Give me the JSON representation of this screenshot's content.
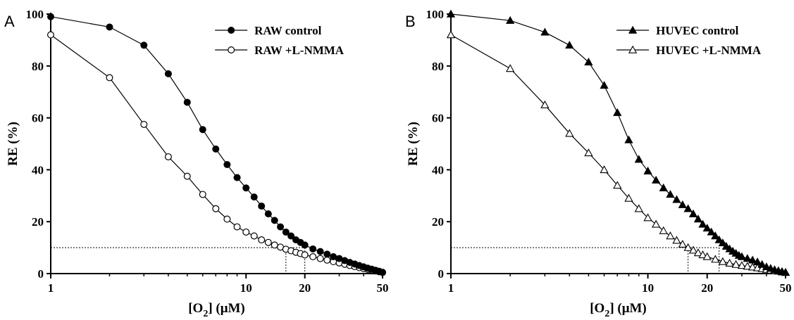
{
  "chart_data": [
    {
      "type": "line",
      "panel_label": "A",
      "xlabel": "[O2] (μM)",
      "ylabel": "RE (%)",
      "x_scale": "log",
      "xlim": [
        1,
        50
      ],
      "ylim": [
        0,
        100
      ],
      "x_ticks": [
        1,
        10,
        20,
        50
      ],
      "x_tick_labels": [
        "1",
        "10",
        "20",
        "50"
      ],
      "y_ticks": [
        0,
        20,
        40,
        60,
        80,
        100
      ],
      "y_tick_labels": [
        "0",
        "20",
        "40",
        "60",
        "80",
        "100"
      ],
      "grid": false,
      "legend_position": "top-right",
      "reference_lines": {
        "y": 10,
        "x": [
          16,
          20
        ]
      },
      "series": [
        {
          "name": "RAW control",
          "marker": "filled-circle",
          "x": [
            1,
            2,
            3,
            4,
            5,
            6,
            7,
            8,
            9,
            10,
            11,
            12,
            13,
            14,
            15,
            16,
            17,
            18,
            19,
            20,
            22,
            24,
            26,
            28,
            30,
            32,
            34,
            36,
            38,
            40,
            42,
            44,
            46,
            48,
            50
          ],
          "y": [
            99,
            95,
            88,
            77,
            66,
            55.5,
            48,
            42,
            37,
            33,
            29.5,
            26,
            23,
            20.5,
            18,
            16,
            14.5,
            13,
            12,
            11,
            9.5,
            8.5,
            7.5,
            6.5,
            5.8,
            5,
            4.3,
            3.7,
            3.1,
            2.6,
            2.1,
            1.7,
            1.3,
            0.9,
            0.5
          ]
        },
        {
          "name": "RAW +L-NMMA",
          "marker": "open-circle",
          "x": [
            1,
            2,
            3,
            4,
            5,
            6,
            7,
            8,
            9,
            10,
            11,
            12,
            13,
            14,
            15,
            16,
            17,
            18,
            19,
            20,
            22,
            24,
            26,
            28,
            30,
            32,
            34,
            36,
            38,
            40,
            42,
            44,
            46,
            48,
            50
          ],
          "y": [
            92,
            75.5,
            57.5,
            45,
            37.5,
            30.5,
            25,
            21,
            18,
            16,
            14.5,
            13,
            12,
            11,
            10.2,
            9.4,
            8.8,
            8.2,
            7.7,
            7.2,
            6.5,
            5.8,
            5.2,
            4.6,
            4.1,
            3.6,
            3.1,
            2.7,
            2.3,
            1.9,
            1.6,
            1.3,
            1,
            0.7,
            0.4
          ]
        }
      ]
    },
    {
      "type": "line",
      "panel_label": "B",
      "xlabel": "[O2] (μM)",
      "ylabel": "RE (%)",
      "x_scale": "log",
      "xlim": [
        1,
        50
      ],
      "ylim": [
        0,
        100
      ],
      "x_ticks": [
        1,
        10,
        20,
        50
      ],
      "x_tick_labels": [
        "1",
        "10",
        "20",
        "50"
      ],
      "y_ticks": [
        0,
        20,
        40,
        60,
        80,
        100
      ],
      "y_tick_labels": [
        "0",
        "20",
        "40",
        "60",
        "80",
        "100"
      ],
      "grid": false,
      "legend_position": "top-right",
      "reference_lines": {
        "y": 10,
        "x": [
          16,
          23
        ]
      },
      "series": [
        {
          "name": "HUVEC control",
          "marker": "filled-triangle",
          "x": [
            1,
            2,
            3,
            4,
            5,
            6,
            7,
            8,
            9,
            10,
            11,
            12,
            13,
            14,
            15,
            16,
            17,
            18,
            19,
            20,
            21,
            22,
            23,
            24,
            25,
            26,
            27,
            28,
            29,
            30,
            32,
            34,
            36,
            38,
            40,
            42,
            44,
            46,
            48,
            50
          ],
          "y": [
            100,
            97.5,
            93,
            88,
            81.5,
            72.5,
            62,
            51.5,
            44,
            39.5,
            36,
            33,
            30.5,
            28.5,
            26.5,
            25,
            23,
            21,
            19,
            17.5,
            16,
            14.5,
            13,
            11.8,
            10.5,
            9.5,
            8.6,
            7.8,
            7,
            6.5,
            5.8,
            5.2,
            4.5,
            3.5,
            2.6,
            2,
            1.5,
            1.1,
            0.8,
            0.5
          ]
        },
        {
          "name": "HUVEC +L-NMMA",
          "marker": "open-triangle",
          "x": [
            1,
            2,
            3,
            4,
            5,
            6,
            7,
            8,
            9,
            10,
            11,
            12,
            13,
            14,
            15,
            16,
            17,
            18,
            19,
            20,
            22,
            24,
            26,
            28,
            30,
            32,
            34,
            36,
            38,
            40,
            42,
            44,
            46,
            48,
            50
          ],
          "y": [
            92,
            79,
            65,
            54,
            46.5,
            40,
            34,
            29,
            25,
            21.5,
            19,
            16.5,
            14.5,
            12.8,
            11.3,
            10,
            9,
            8,
            7.2,
            6.5,
            5.5,
            4.6,
            4,
            3.5,
            3.1,
            2.8,
            2.5,
            2.2,
            1.9,
            1.6,
            1.3,
            1.1,
            0.9,
            0.6,
            0.4
          ]
        }
      ]
    }
  ]
}
